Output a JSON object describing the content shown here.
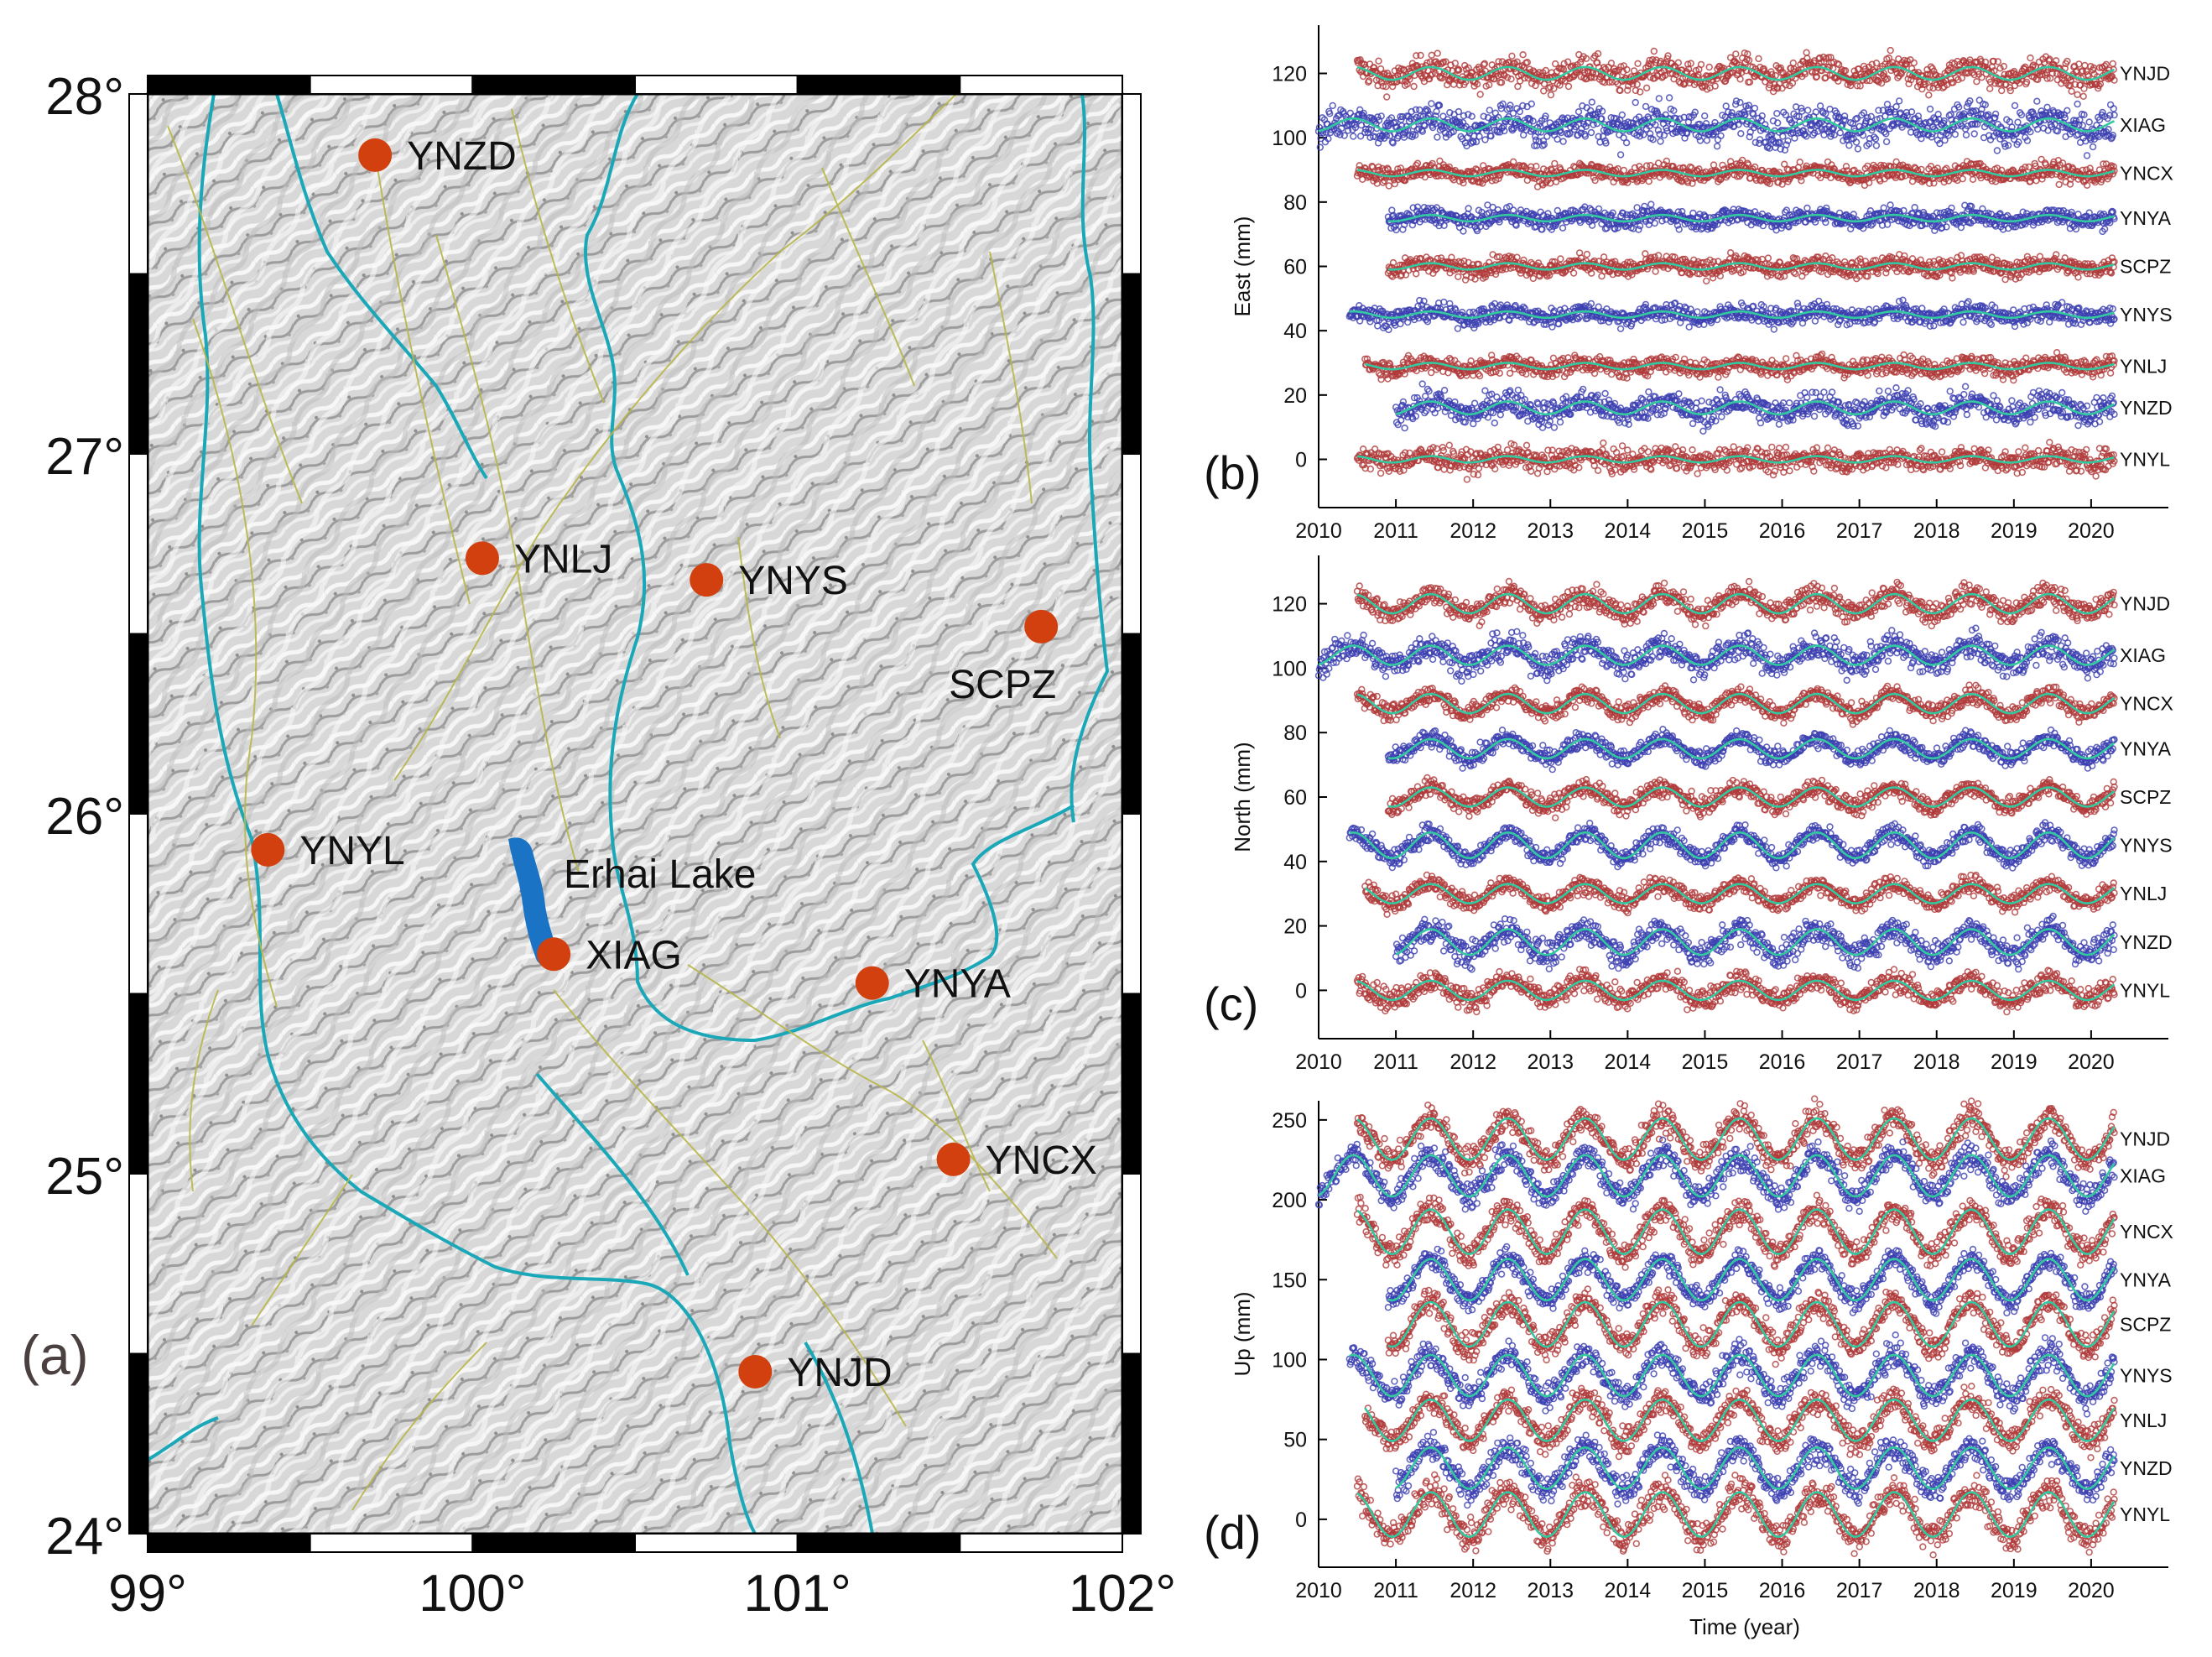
{
  "map": {
    "panel_label": "(a)",
    "lat_ticks": [
      "24°",
      "25°",
      "26°",
      "27°",
      "28°"
    ],
    "lon_ticks": [
      "99°",
      "100°",
      "101°",
      "102°"
    ],
    "lake_label": "Erhai Lake",
    "stations": [
      {
        "name": "YNZD",
        "lon": 99.7,
        "lat": 27.83
      },
      {
        "name": "YNLJ",
        "lon": 100.03,
        "lat": 26.71
      },
      {
        "name": "YNYS",
        "lon": 100.72,
        "lat": 26.65
      },
      {
        "name": "SCPZ",
        "lon": 101.75,
        "lat": 26.52
      },
      {
        "name": "YNYL",
        "lon": 99.37,
        "lat": 25.9
      },
      {
        "name": "XIAG",
        "lon": 100.25,
        "lat": 25.61
      },
      {
        "name": "YNYA",
        "lon": 101.23,
        "lat": 25.53
      },
      {
        "name": "YNCX",
        "lon": 101.48,
        "lat": 25.04
      },
      {
        "name": "YNJD",
        "lon": 100.87,
        "lat": 24.45
      }
    ],
    "colors": {
      "station": "#d2400f",
      "lake": "#1a73c4",
      "river": "#1aa8b8",
      "fault": "#b8b64a"
    }
  },
  "chart_data": [
    {
      "type": "scatter",
      "panel_label": "(b)",
      "ylabel": "East (mm)",
      "xlabel": "",
      "xlim": [
        2010,
        2021
      ],
      "ylim": [
        -15,
        135
      ],
      "x_ticks": [
        2010,
        2011,
        2012,
        2013,
        2014,
        2015,
        2016,
        2017,
        2018,
        2019,
        2020
      ],
      "y_ticks": [
        0,
        20,
        40,
        60,
        80,
        100,
        120
      ],
      "series": [
        {
          "name": "YNJD",
          "offset": 120,
          "start": 2010.5,
          "end": 2020.3,
          "color": "red",
          "amp": 2,
          "noise": 3
        },
        {
          "name": "XIAG",
          "offset": 104,
          "start": 2010.0,
          "end": 2020.3,
          "color": "blue",
          "amp": 2,
          "noise": 4
        },
        {
          "name": "YNCX",
          "offset": 89,
          "start": 2010.5,
          "end": 2020.3,
          "color": "red",
          "amp": 1,
          "noise": 2
        },
        {
          "name": "YNYA",
          "offset": 75,
          "start": 2010.9,
          "end": 2020.3,
          "color": "blue",
          "amp": 1,
          "noise": 2
        },
        {
          "name": "SCPZ",
          "offset": 60,
          "start": 2010.9,
          "end": 2020.3,
          "color": "red",
          "amp": 1,
          "noise": 2
        },
        {
          "name": "YNYS",
          "offset": 45,
          "start": 2010.4,
          "end": 2020.3,
          "color": "blue",
          "amp": 1,
          "noise": 2
        },
        {
          "name": "YNLJ",
          "offset": 29,
          "start": 2010.6,
          "end": 2020.3,
          "color": "red",
          "amp": 1,
          "noise": 2
        },
        {
          "name": "YNZD",
          "offset": 16,
          "start": 2011.0,
          "end": 2020.3,
          "color": "blue",
          "amp": 2,
          "noise": 3
        },
        {
          "name": "YNYL",
          "offset": 0,
          "start": 2010.5,
          "end": 2020.3,
          "color": "red",
          "amp": 1,
          "noise": 2.5
        }
      ]
    },
    {
      "type": "scatter",
      "panel_label": "(c)",
      "ylabel": "North (mm)",
      "xlabel": "",
      "xlim": [
        2010,
        2021
      ],
      "ylim": [
        -15,
        135
      ],
      "x_ticks": [
        2010,
        2011,
        2012,
        2013,
        2014,
        2015,
        2016,
        2017,
        2018,
        2019,
        2020
      ],
      "y_ticks": [
        0,
        20,
        40,
        60,
        80,
        100,
        120
      ],
      "series": [
        {
          "name": "YNJD",
          "offset": 120,
          "start": 2010.5,
          "end": 2020.3,
          "color": "red",
          "amp": 3,
          "noise": 2.5
        },
        {
          "name": "XIAG",
          "offset": 104,
          "start": 2010.0,
          "end": 2020.3,
          "color": "blue",
          "amp": 3,
          "noise": 3
        },
        {
          "name": "YNCX",
          "offset": 89,
          "start": 2010.5,
          "end": 2020.3,
          "color": "red",
          "amp": 3,
          "noise": 2
        },
        {
          "name": "YNYA",
          "offset": 75,
          "start": 2010.9,
          "end": 2020.3,
          "color": "blue",
          "amp": 3,
          "noise": 2
        },
        {
          "name": "SCPZ",
          "offset": 60,
          "start": 2010.9,
          "end": 2020.3,
          "color": "red",
          "amp": 3,
          "noise": 2
        },
        {
          "name": "YNYS",
          "offset": 45,
          "start": 2010.4,
          "end": 2020.3,
          "color": "blue",
          "amp": 4,
          "noise": 2
        },
        {
          "name": "YNLJ",
          "offset": 30,
          "start": 2010.6,
          "end": 2020.3,
          "color": "red",
          "amp": 3,
          "noise": 2
        },
        {
          "name": "YNZD",
          "offset": 15,
          "start": 2011.0,
          "end": 2020.3,
          "color": "blue",
          "amp": 4,
          "noise": 3
        },
        {
          "name": "YNYL",
          "offset": 0,
          "start": 2010.5,
          "end": 2020.3,
          "color": "red",
          "amp": 3,
          "noise": 2.5
        }
      ]
    },
    {
      "type": "scatter",
      "panel_label": "(d)",
      "ylabel": "Up (mm)",
      "xlabel": "Time (year)",
      "xlim": [
        2010,
        2021
      ],
      "ylim": [
        -30,
        262
      ],
      "x_ticks": [
        2010,
        2011,
        2012,
        2013,
        2014,
        2015,
        2016,
        2017,
        2018,
        2019,
        2020
      ],
      "y_ticks": [
        0,
        50,
        100,
        150,
        200,
        250
      ],
      "series": [
        {
          "name": "YNJD",
          "offset": 238,
          "start": 2010.5,
          "end": 2020.3,
          "color": "red",
          "amp": 13,
          "noise": 6
        },
        {
          "name": "XIAG",
          "offset": 215,
          "start": 2010.0,
          "end": 2020.3,
          "color": "blue",
          "amp": 13,
          "noise": 6
        },
        {
          "name": "YNCX",
          "offset": 180,
          "start": 2010.5,
          "end": 2020.3,
          "color": "red",
          "amp": 14,
          "noise": 6
        },
        {
          "name": "YNYA",
          "offset": 150,
          "start": 2010.9,
          "end": 2020.3,
          "color": "blue",
          "amp": 13,
          "noise": 5
        },
        {
          "name": "SCPZ",
          "offset": 122,
          "start": 2010.9,
          "end": 2020.3,
          "color": "red",
          "amp": 14,
          "noise": 6
        },
        {
          "name": "YNYS",
          "offset": 90,
          "start": 2010.4,
          "end": 2020.3,
          "color": "blue",
          "amp": 13,
          "noise": 6
        },
        {
          "name": "YNLJ",
          "offset": 62,
          "start": 2010.6,
          "end": 2020.3,
          "color": "red",
          "amp": 13,
          "noise": 6
        },
        {
          "name": "YNZD",
          "offset": 32,
          "start": 2011.0,
          "end": 2020.3,
          "color": "blue",
          "amp": 13,
          "noise": 6
        },
        {
          "name": "YNYL",
          "offset": 3,
          "start": 2010.5,
          "end": 2020.3,
          "color": "red",
          "amp": 14,
          "noise": 7
        }
      ]
    }
  ],
  "colors": {
    "red": "#b03a3a",
    "blue": "#3b3fb0",
    "fit": "#33c9a0"
  }
}
